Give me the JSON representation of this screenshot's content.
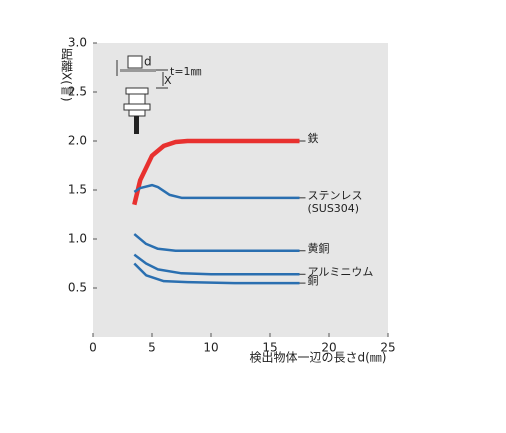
{
  "chart_data": {
    "type": "line",
    "y_label": "距離X(㎜)",
    "x_label": "検出物体一辺の長さd(㎜)",
    "xlim": [
      0,
      25
    ],
    "xticks": [
      0,
      5,
      10,
      15,
      20,
      25
    ],
    "ylim": [
      0,
      3
    ],
    "yticks": [
      {
        "value": 0.5,
        "label": "0.5"
      },
      {
        "value": 1,
        "label": "1.0"
      },
      {
        "value": 1.5,
        "label": "1.5"
      },
      {
        "value": 2,
        "label": "2.0"
      },
      {
        "value": 2.5,
        "label": "2.5"
      },
      {
        "value": 3,
        "label": "3.0"
      }
    ],
    "grid": false,
    "background": "#e6e6e6",
    "series": [
      {
        "name": "鉄",
        "color": "#e8312f",
        "x": [
          3.5,
          4,
          5,
          6,
          7,
          8,
          10,
          12,
          14,
          16,
          17.5
        ],
        "values": [
          1.35,
          1.6,
          1.85,
          1.95,
          1.99,
          2.0,
          2.0,
          2.0,
          2.0,
          2.0,
          2.0
        ]
      },
      {
        "name": "ステンレス",
        "color": "#2a6fb0",
        "x": [
          3.5,
          4,
          5,
          5.5,
          6.5,
          7.5,
          10,
          14,
          17.5
        ],
        "values": [
          1.48,
          1.52,
          1.55,
          1.53,
          1.45,
          1.42,
          1.42,
          1.42,
          1.42
        ]
      },
      {
        "name": "黄銅",
        "color": "#2a6fb0",
        "x": [
          3.5,
          4.5,
          5.5,
          7,
          10,
          14,
          17.5
        ],
        "values": [
          1.05,
          0.95,
          0.9,
          0.88,
          0.88,
          0.88,
          0.88
        ]
      },
      {
        "name": "アルミニウム",
        "color": "#2a6fb0",
        "x": [
          3.5,
          4.5,
          5.5,
          7.5,
          10,
          14,
          17.5
        ],
        "values": [
          0.84,
          0.75,
          0.69,
          0.65,
          0.64,
          0.64,
          0.64
        ]
      },
      {
        "name": "銅",
        "color": "#2a6fb0",
        "x": [
          3.5,
          4.5,
          6,
          8,
          12,
          17.5
        ],
        "values": [
          0.75,
          0.63,
          0.57,
          0.56,
          0.55,
          0.55
        ]
      }
    ],
    "annotations": {
      "sus": "(SUS304)",
      "thickness": "t=1㎜",
      "d": "d",
      "x": "X"
    }
  }
}
